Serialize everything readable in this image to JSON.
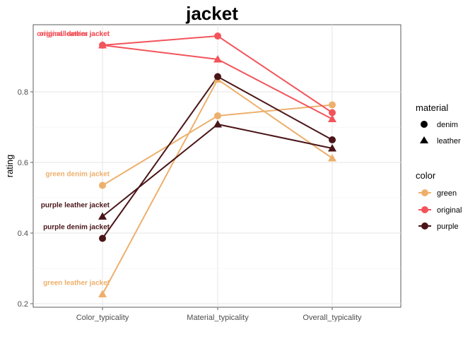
{
  "chart_data": {
    "type": "line",
    "title": "jacket",
    "xlabel": "",
    "ylabel": "rating",
    "categories": [
      "Color_typicality",
      "Material_typicality",
      "Overall_typicality"
    ],
    "ylim": [
      0.19,
      0.99
    ],
    "yticks": [
      0.2,
      0.4,
      0.6,
      0.8
    ],
    "ytick_labels": [
      "0.2",
      "0.4",
      "0.6",
      "0.8"
    ],
    "grid": true,
    "legend_position": "right",
    "series": [
      {
        "name": "green denim jacket",
        "color": "green",
        "material": "denim",
        "color_hex": "#EDB06C",
        "values": [
          0.535,
          0.732,
          0.763
        ],
        "label": "green denim jacket"
      },
      {
        "name": "green leather jacket",
        "color": "green",
        "material": "leather",
        "color_hex": "#EDB06C",
        "values": [
          0.227,
          0.835,
          0.612
        ],
        "label": "green leather jacket"
      },
      {
        "name": "original denim jacket",
        "color": "original",
        "material": "denim",
        "color_hex": "#F2545B",
        "values": [
          0.932,
          0.958,
          0.741
        ],
        "label": "original denim jacket"
      },
      {
        "name": "original leather jacket",
        "color": "original",
        "material": "leather",
        "color_hex": "#F2545B",
        "values": [
          0.932,
          0.892,
          0.723
        ],
        "label": "original leather jacket"
      },
      {
        "name": "purple denim jacket",
        "color": "purple",
        "material": "denim",
        "color_hex": "#4A1518",
        "values": [
          0.385,
          0.843,
          0.664
        ],
        "label": "purple denim jacket"
      },
      {
        "name": "purple leather jacket",
        "color": "purple",
        "material": "leather",
        "color_hex": "#4A1518",
        "values": [
          0.447,
          0.708,
          0.64
        ],
        "label": "purple leather jacket"
      }
    ],
    "legend": {
      "material": {
        "title": "material",
        "items": [
          {
            "label": "denim",
            "shape": "circle"
          },
          {
            "label": "leather",
            "shape": "triangle"
          }
        ]
      },
      "color": {
        "title": "color",
        "items": [
          {
            "label": "green",
            "color_hex": "#EDB06C"
          },
          {
            "label": "original",
            "color_hex": "#F2545B"
          },
          {
            "label": "purple",
            "color_hex": "#4A1518"
          }
        ]
      }
    }
  }
}
